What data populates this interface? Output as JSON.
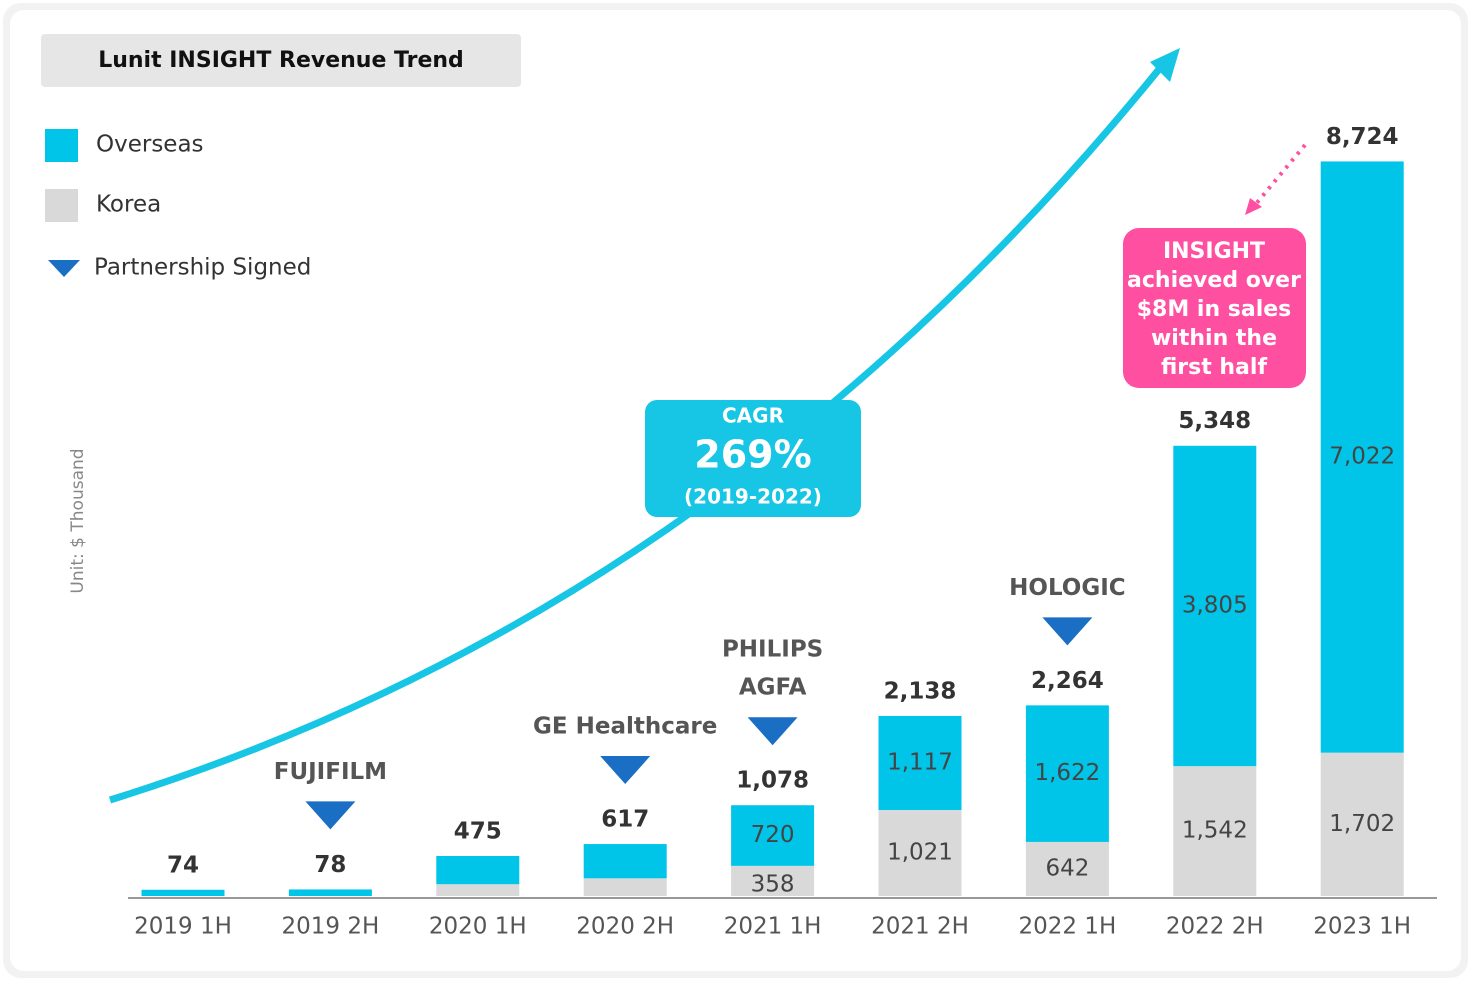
{
  "chart_data": {
    "type": "stacked_bar",
    "title": "Lunit INSIGHT Revenue Trend",
    "y_axis_label": "Unit: $ Thousand",
    "categories": [
      "2019 1H",
      "2019 2H",
      "2020 1H",
      "2020 2H",
      "2021 1H",
      "2021 2H",
      "2022 1H",
      "2022 2H",
      "2023 1H"
    ],
    "series": [
      {
        "name": "Korea",
        "color": "#d9d9d9",
        "values": [
          0,
          0,
          140,
          210,
          358,
          1021,
          642,
          1542,
          1702
        ],
        "value_labels": [
          null,
          null,
          null,
          null,
          "358",
          "1,021",
          "642",
          "1,542",
          "1,702"
        ]
      },
      {
        "name": "Overseas",
        "color": "#00c5e8",
        "values": [
          74,
          78,
          335,
          407,
          720,
          1117,
          1622,
          3805,
          7022
        ],
        "value_labels": [
          null,
          null,
          null,
          null,
          "720",
          "1,117",
          "1,622",
          "3,805",
          "7,022"
        ]
      }
    ],
    "totals": [
      74,
      78,
      475,
      617,
      1078,
      2138,
      2264,
      5348,
      8724
    ],
    "total_labels": [
      "74",
      "78",
      "475",
      "617",
      "1,078",
      "2,138",
      "2,264",
      "5,348",
      "8,724"
    ],
    "ylim": [
      0,
      10000
    ],
    "partnership_legend": "Partnership Signed",
    "partnership_color": "#1a6fc4",
    "partnerships": [
      {
        "category": "2019 2H",
        "labels": [
          "FUJIFILM"
        ]
      },
      {
        "category": "2020 2H",
        "labels": [
          "GE Healthcare"
        ]
      },
      {
        "category": "2021 1H",
        "labels": [
          "AGFA",
          "PHILIPS"
        ]
      },
      {
        "category": "2022 1H",
        "labels": [
          "HOLOGIC"
        ]
      }
    ],
    "cagr": {
      "title": "CAGR",
      "value": "269%",
      "period": "(2019-2022)"
    },
    "callout": [
      "INSIGHT",
      "achieved over",
      "$8M in sales",
      "within the",
      "first half"
    ]
  }
}
